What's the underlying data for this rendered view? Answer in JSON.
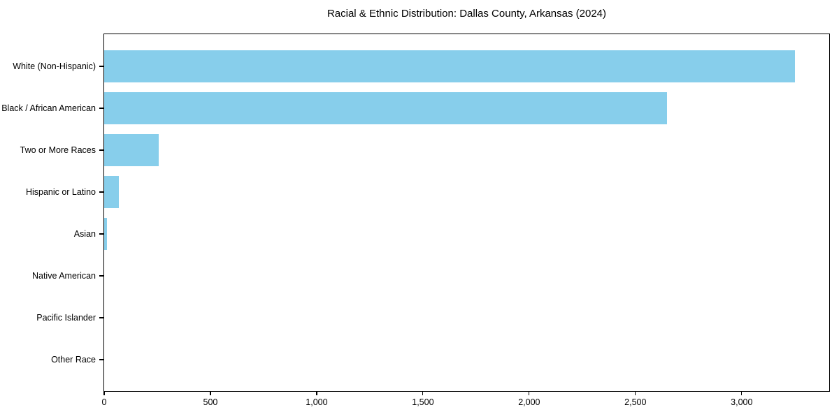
{
  "chart_data": {
    "type": "bar",
    "orientation": "horizontal",
    "title": "Racial & Ethnic Distribution: Dallas County, Arkansas (2024)",
    "categories": [
      "White (Non-Hispanic)",
      "Black / African American",
      "Two or More Races",
      "Hispanic or Latino",
      "Asian",
      "Native American",
      "Pacific Islander",
      "Other Race"
    ],
    "values": [
      3250,
      2650,
      255,
      70,
      12,
      0,
      0,
      0
    ],
    "xlabel": "",
    "ylabel": "",
    "xlim": [
      0,
      3412
    ],
    "xticks": [
      0,
      500,
      1000,
      1500,
      2000,
      2500,
      3000
    ],
    "xtick_labels": [
      "0",
      "500",
      "1,000",
      "1,500",
      "2,000",
      "2,500",
      "3,000"
    ],
    "bar_color": "#87CEEB",
    "grid": false,
    "legend_position": "none",
    "background_color": "#ffffff",
    "text_color": "#000000"
  }
}
